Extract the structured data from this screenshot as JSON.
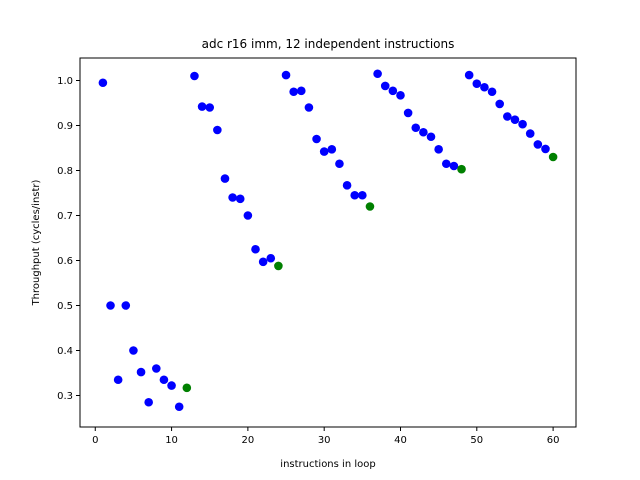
{
  "chart_data": {
    "type": "scatter",
    "title": "adc r16 imm, 12 independent instructions",
    "xlabel": "instructions in loop",
    "ylabel": "Throughput (cycles/instr)",
    "xlim": [
      -2,
      63
    ],
    "ylim": [
      0.23,
      1.05
    ],
    "xticks": [
      "0",
      "10",
      "20",
      "30",
      "40",
      "50",
      "60"
    ],
    "yticks": [
      "0.3",
      "0.4",
      "0.5",
      "0.6",
      "0.7",
      "0.8",
      "0.9",
      "1.0"
    ],
    "grid": false,
    "colors": {
      "regular": "#0000ff",
      "highlight": "#008000"
    },
    "series": [
      {
        "color": "#0000ff",
        "x": [
          1,
          2,
          3,
          4,
          5,
          6,
          7,
          8,
          9,
          10,
          11,
          13,
          14,
          15,
          16,
          17,
          18,
          19,
          20,
          21,
          22,
          23,
          25,
          26,
          27,
          28,
          29,
          30,
          31,
          32,
          33,
          34,
          35,
          37,
          38,
          39,
          40,
          41,
          42,
          43,
          44,
          45,
          46,
          47,
          49,
          50,
          51,
          52,
          53,
          54,
          55,
          56,
          57,
          58,
          59
        ],
        "y": [
          0.995,
          0.5,
          0.335,
          0.5,
          0.4,
          0.352,
          0.285,
          0.36,
          0.335,
          0.322,
          0.275,
          1.01,
          0.942,
          0.94,
          0.89,
          0.782,
          0.74,
          0.737,
          0.7,
          0.625,
          0.597,
          0.605,
          1.012,
          0.975,
          0.977,
          0.94,
          0.87,
          0.842,
          0.847,
          0.815,
          0.767,
          0.745,
          0.745,
          1.015,
          0.988,
          0.977,
          0.967,
          0.928,
          0.895,
          0.885,
          0.875,
          0.847,
          0.815,
          0.81,
          1.012,
          0.993,
          0.985,
          0.975,
          0.948,
          0.92,
          0.913,
          0.903,
          0.882,
          0.858,
          0.848
        ]
      },
      {
        "color": "#008000",
        "x": [
          12,
          24,
          36,
          48,
          60
        ],
        "y": [
          0.317,
          0.588,
          0.72,
          0.803,
          0.83
        ]
      }
    ]
  }
}
